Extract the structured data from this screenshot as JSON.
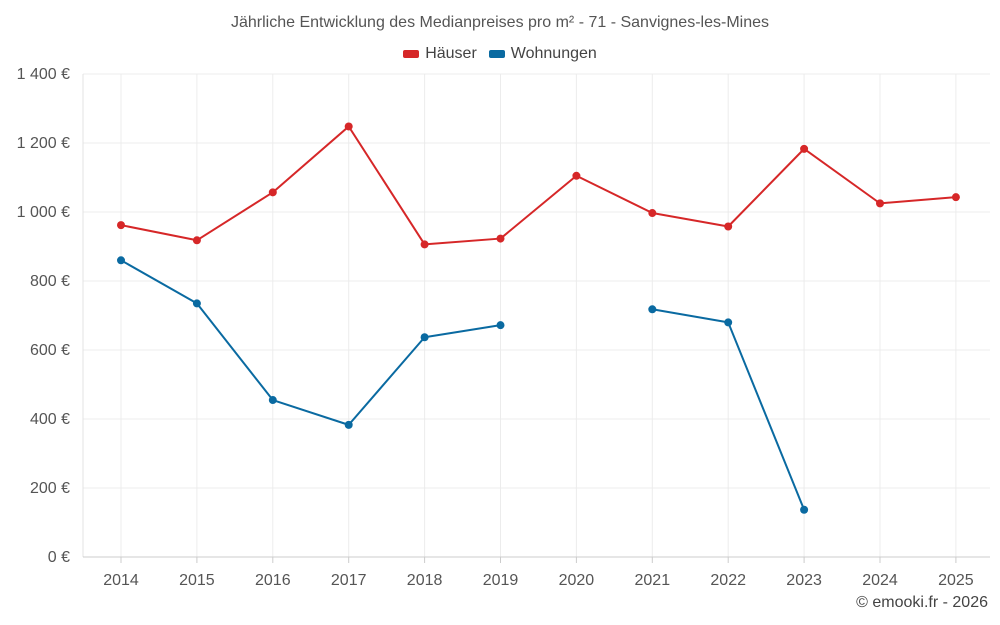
{
  "chart_data": {
    "type": "line",
    "title": "Jährliche Entwicklung des Medianpreises pro m² - 71 - Sanvignes-les-Mines",
    "xlabel": "",
    "ylabel": "",
    "x": [
      2014,
      2015,
      2016,
      2017,
      2018,
      2019,
      2020,
      2021,
      2022,
      2023,
      2024,
      2025
    ],
    "ylim": [
      0,
      1400
    ],
    "yticks": [
      0,
      200,
      400,
      600,
      800,
      1000,
      1200,
      1400
    ],
    "ytick_labels": [
      "0 €",
      "200 €",
      "400 €",
      "600 €",
      "800 €",
      "1 000 €",
      "1 200 €",
      "1 400 €"
    ],
    "grid": true,
    "legend_position": "top-center",
    "series": [
      {
        "name": "Häuser",
        "color": "#d62728",
        "values": [
          962,
          918,
          1057,
          1248,
          906,
          923,
          1105,
          997,
          958,
          1183,
          1025,
          1043
        ]
      },
      {
        "name": "Wohnungen",
        "color": "#0a6aa1",
        "values": [
          860,
          735,
          455,
          383,
          637,
          672,
          null,
          718,
          680,
          137,
          null,
          null
        ]
      }
    ]
  },
  "credit": "© emooki.fr - 2026"
}
